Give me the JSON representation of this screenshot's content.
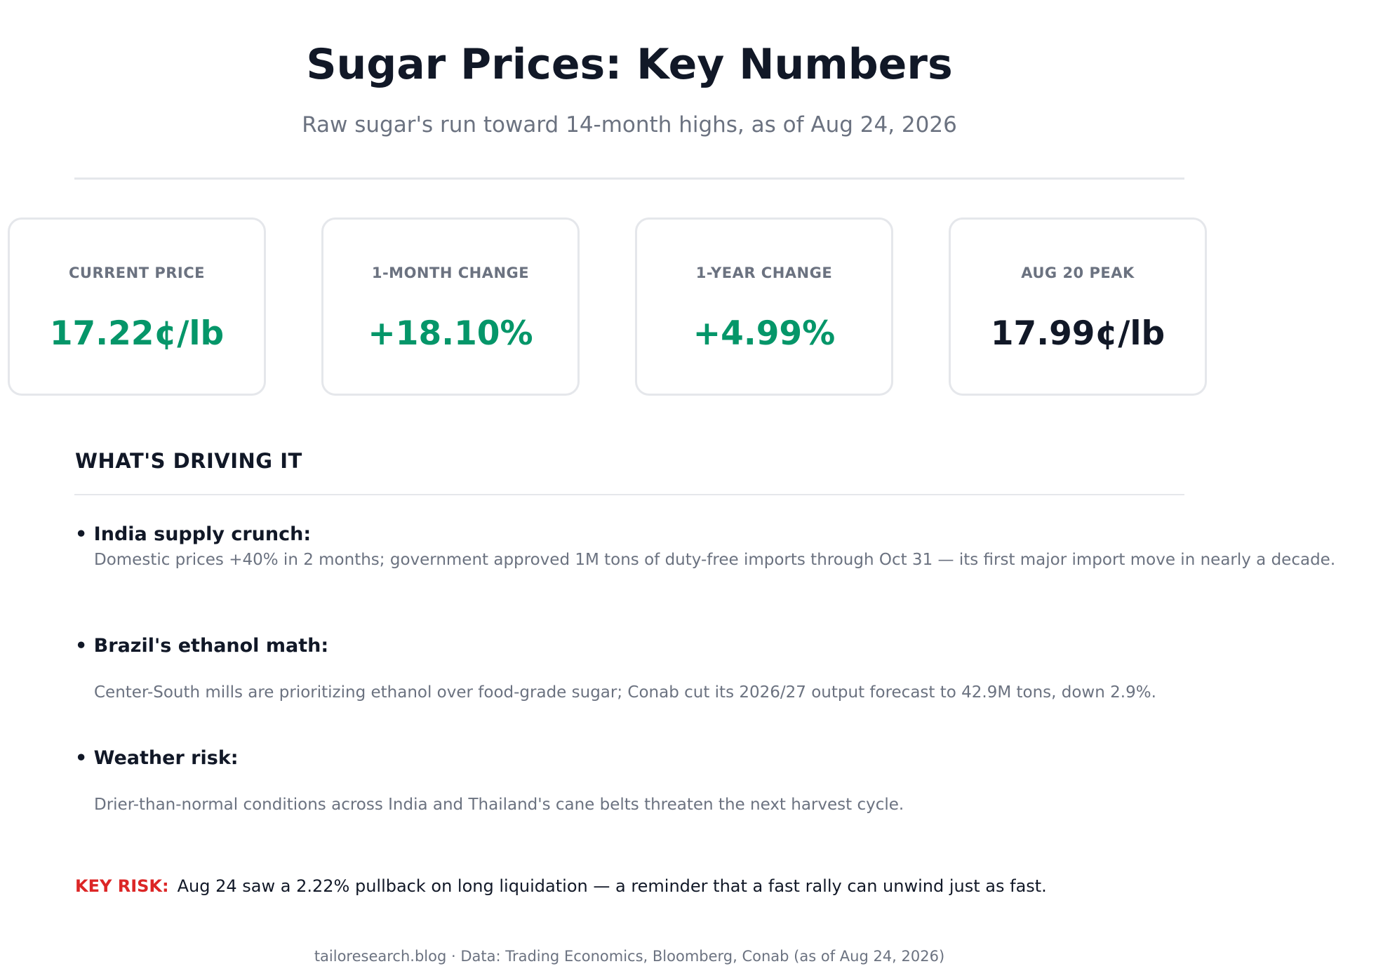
{
  "header": {
    "title": "Sugar Prices: Key Numbers",
    "subtitle": "Raw sugar's run toward 14-month highs, as of Aug 24, 2026"
  },
  "cards": [
    {
      "label": "CURRENT PRICE",
      "value": "17.22¢/lb",
      "color": "#059669"
    },
    {
      "label": "1-MONTH CHANGE",
      "value": "+18.10%",
      "color": "#059669"
    },
    {
      "label": "1-YEAR CHANGE",
      "value": "+4.99%",
      "color": "#059669"
    },
    {
      "label": "AUG 20 PEAK",
      "value": "17.99¢/lb",
      "color": "#111827"
    }
  ],
  "drivers": {
    "title": "WHAT'S DRIVING IT",
    "items": [
      {
        "bullet": "•",
        "heading": "India supply crunch:",
        "body": "Domestic prices +40% in 2 months; government approved 1M tons of duty-free imports through Oct 31 — its first major import move in nearly a decade."
      },
      {
        "bullet": "•",
        "heading": "Brazil's ethanol math:",
        "body": "Center-South mills are prioritizing ethanol over food-grade sugar; Conab cut its 2026/27 output forecast to 42.9M tons, down 2.9%."
      },
      {
        "bullet": "•",
        "heading": "Weather risk:",
        "body": "Drier-than-normal conditions across India and Thailand's cane belts threaten the next harvest cycle."
      }
    ]
  },
  "risk": {
    "label": "KEY RISK:",
    "text": "Aug 24 saw a 2.22% pullback on long liquidation — a reminder that a fast rally can unwind just as fast."
  },
  "footer": {
    "text": "tailoresearch.blog  ·  Data: Trading Economics, Bloomberg, Conab (as of Aug 24, 2026)"
  },
  "colors": {
    "positive": "#059669",
    "neutral": "#111827",
    "muted": "#6b7280",
    "risk": "#dc2626",
    "border": "#e5e7eb"
  }
}
